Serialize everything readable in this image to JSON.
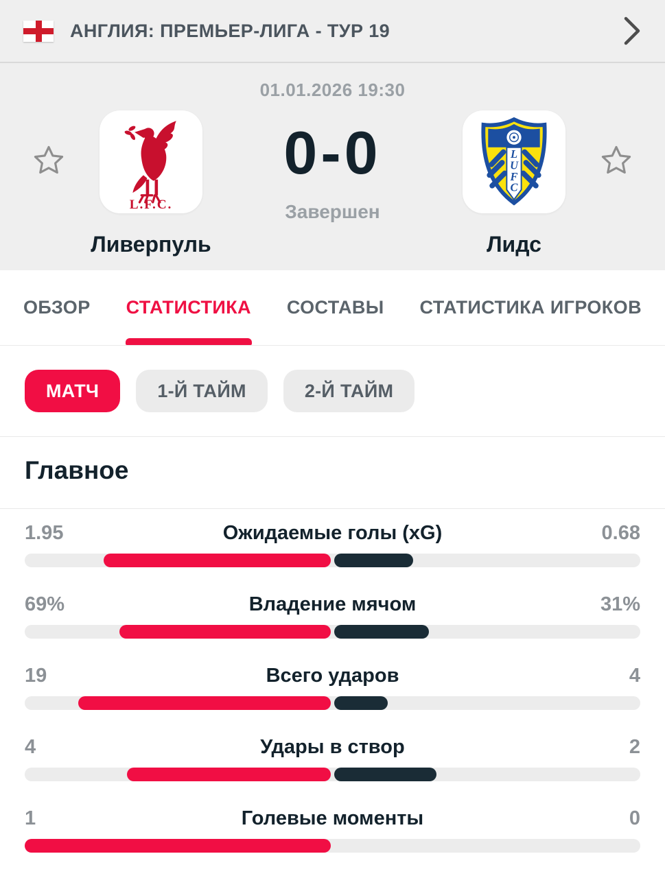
{
  "header": {
    "competition": "АНГЛИЯ: ПРЕМЬЕР-ЛИГА - ТУР 19"
  },
  "match": {
    "datetime": "01.01.2026 19:30",
    "score": "0-0",
    "status": "Завершен",
    "home": {
      "name": "Ливерпуль",
      "crest_text": "L.F.C."
    },
    "away": {
      "name": "Лидс",
      "crest_letters": [
        "L",
        "U",
        "F",
        "C"
      ]
    }
  },
  "tabs": [
    {
      "key": "overview",
      "label": "ОБЗОР",
      "active": false
    },
    {
      "key": "statistics",
      "label": "СТАТИСТИКА",
      "active": true
    },
    {
      "key": "lineups",
      "label": "СОСТАВЫ",
      "active": false
    },
    {
      "key": "player-stats",
      "label": "СТАТИСТИКА ИГРОКОВ",
      "active": false
    }
  ],
  "filters": [
    {
      "key": "match",
      "label": "МАТЧ",
      "active": true
    },
    {
      "key": "first-half",
      "label": "1-Й ТАЙМ",
      "active": false
    },
    {
      "key": "second-half",
      "label": "2-Й ТАЙМ",
      "active": false
    }
  ],
  "section_title": "Главное",
  "stats": [
    {
      "label": "Ожидаемые голы (xG)",
      "home": "1.95",
      "away": "0.68",
      "home_value": 1.95,
      "away_value": 0.68
    },
    {
      "label": "Владение мячом",
      "home": "69%",
      "away": "31%",
      "home_value": 69,
      "away_value": 31
    },
    {
      "label": "Всего ударов",
      "home": "19",
      "away": "4",
      "home_value": 19,
      "away_value": 4
    },
    {
      "label": "Удары в створ",
      "home": "4",
      "away": "2",
      "home_value": 4,
      "away_value": 2
    },
    {
      "label": "Голевые моменты",
      "home": "1",
      "away": "0",
      "home_value": 1,
      "away_value": 0
    }
  ],
  "colors": {
    "accent_red": "#f10e44",
    "away_navy": "#1a2c36",
    "text_dark": "#13222c",
    "text_gray": "#9aa0a5",
    "bg_gray": "#efefef"
  }
}
